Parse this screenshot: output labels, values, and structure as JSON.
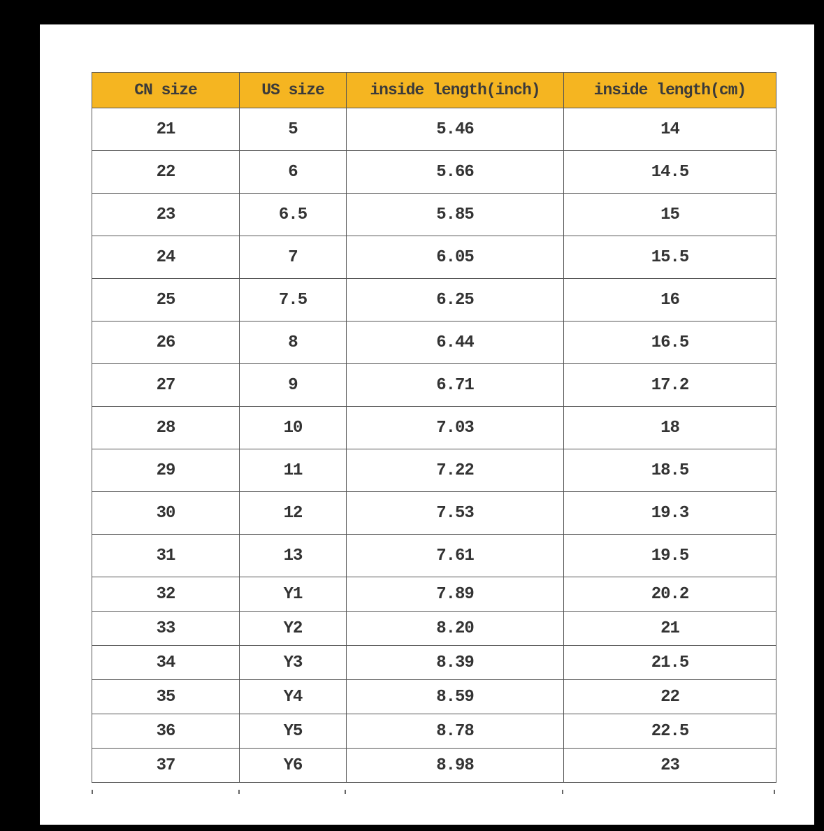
{
  "table": {
    "headers": [
      "CN size",
      "US size",
      "inside length(inch)",
      "inside length(cm)"
    ],
    "header_color": "#f5b521",
    "rows": [
      [
        "21",
        "5",
        "5.46",
        "14"
      ],
      [
        "22",
        "6",
        "5.66",
        "14.5"
      ],
      [
        "23",
        "6.5",
        "5.85",
        "15"
      ],
      [
        "24",
        "7",
        "6.05",
        "15.5"
      ],
      [
        "25",
        "7.5",
        "6.25",
        "16"
      ],
      [
        "26",
        "8",
        "6.44",
        "16.5"
      ],
      [
        "27",
        "9",
        "6.71",
        "17.2"
      ],
      [
        "28",
        "10",
        "7.03",
        "18"
      ],
      [
        "29",
        "11",
        "7.22",
        "18.5"
      ],
      [
        "30",
        "12",
        "7.53",
        "19.3"
      ],
      [
        "31",
        "13",
        "7.61",
        "19.5"
      ],
      [
        "32",
        "Y1",
        "7.89",
        "20.2"
      ],
      [
        "33",
        "Y2",
        "8.20",
        "21"
      ],
      [
        "34",
        "Y3",
        "8.39",
        "21.5"
      ],
      [
        "35",
        "Y4",
        "8.59",
        "22"
      ],
      [
        "36",
        "Y5",
        "8.78",
        "22.5"
      ],
      [
        "37",
        "Y6",
        "8.98",
        "23"
      ]
    ]
  }
}
